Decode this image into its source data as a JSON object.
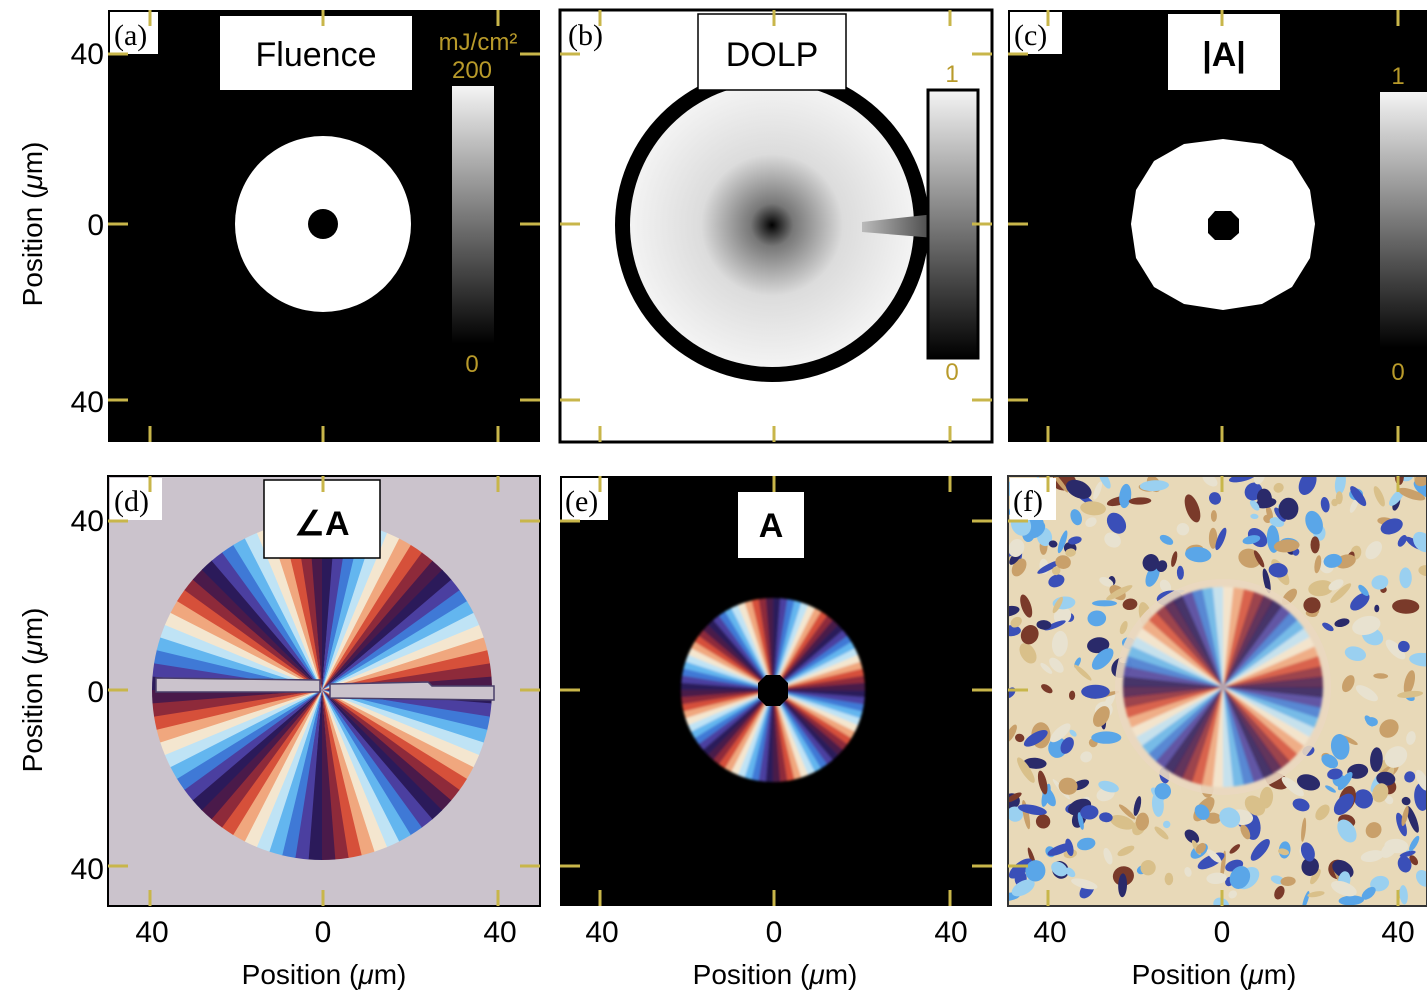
{
  "figure": {
    "panels": [
      {
        "id": "a",
        "letter": "(a)",
        "title": "Fluence",
        "colorbar": {
          "unit": "mJ/cm²",
          "max": "200",
          "min": "0"
        }
      },
      {
        "id": "b",
        "letter": "(b)",
        "title": "DOLP",
        "colorbar": {
          "max": "1",
          "min": "0"
        }
      },
      {
        "id": "c",
        "letter": "(c)",
        "title": "|A|",
        "colorbar": {
          "max": "1",
          "min": "0"
        }
      },
      {
        "id": "d",
        "letter": "(d)",
        "title": "∠A"
      },
      {
        "id": "e",
        "letter": "(e)",
        "title": "A"
      },
      {
        "id": "f",
        "letter": "(f)",
        "title": ""
      }
    ],
    "y_ticks": [
      "40",
      "0",
      "40"
    ],
    "x_ticks": [
      "40",
      "0",
      "40"
    ],
    "y_label_prefix": "Position (",
    "mu": "μ",
    "y_label_suffix": "m)",
    "x_label": "Position (μm)"
  },
  "colors": {
    "tick": "#c8b64a",
    "tick_label": "#b89a2a",
    "panel_bg_dark": "#000000",
    "panel_bg_d": "#cbc3cc"
  }
}
